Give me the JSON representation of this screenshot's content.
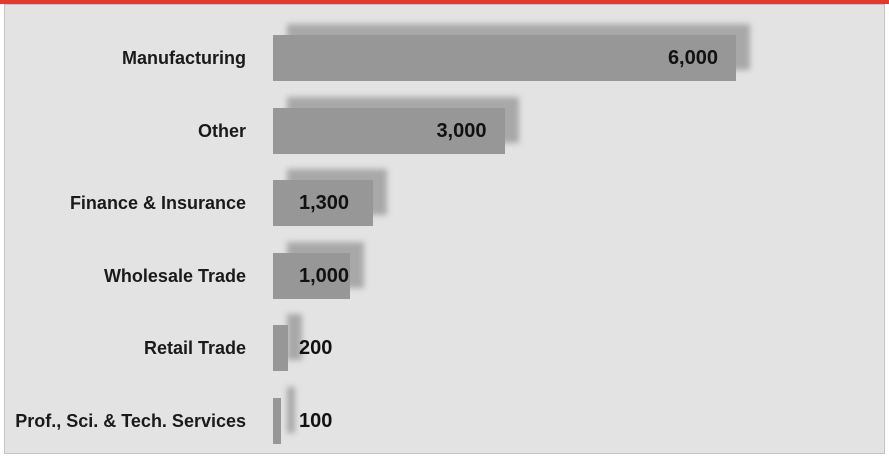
{
  "chart_data": {
    "type": "bar",
    "orientation": "horizontal",
    "categories": [
      "Manufacturing",
      "Other",
      "Finance & Insurance",
      "Wholesale Trade",
      "Retail Trade",
      "Prof., Sci. & Tech. Services"
    ],
    "values": [
      6000,
      3000,
      1300,
      1000,
      200,
      100
    ],
    "value_labels": [
      "6,000",
      "3,000",
      "1,300",
      "1,000",
      "200",
      "100"
    ],
    "color": "#979797"
  }
}
